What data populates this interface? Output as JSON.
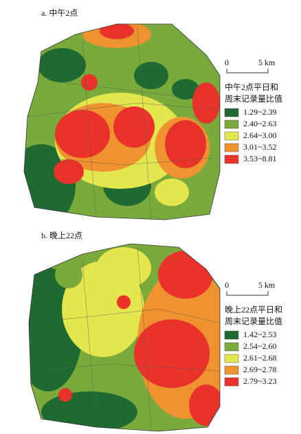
{
  "panels": [
    {
      "title": "a. 中午2点",
      "scale_zero": "0",
      "scale_distance": "5 km",
      "legend_title": [
        "中午2点平日和",
        "周末记录量比值"
      ],
      "classes": [
        {
          "label": "1.29~2.39",
          "color": "#1f6a31"
        },
        {
          "label": "2.40~2.63",
          "color": "#7aaa3c"
        },
        {
          "label": "2.64~3.00",
          "color": "#e3e64c"
        },
        {
          "label": "3.01~3.52",
          "color": "#ef9230"
        },
        {
          "label": "3.53~8.81",
          "color": "#e8322a"
        }
      ]
    },
    {
      "title": "b. 晚上22点",
      "scale_zero": "0",
      "scale_distance": "5 km",
      "legend_title": [
        "晚上22点平日和",
        "周末记录量比值"
      ],
      "classes": [
        {
          "label": "1.42~2.53",
          "color": "#1f6a31"
        },
        {
          "label": "2.54~2.60",
          "color": "#7aaa3c"
        },
        {
          "label": "2.61~2.68",
          "color": "#e3e64c"
        },
        {
          "label": "2.69~2.78",
          "color": "#ef9230"
        },
        {
          "label": "2.79~3.23",
          "color": "#e8322a"
        }
      ]
    }
  ]
}
